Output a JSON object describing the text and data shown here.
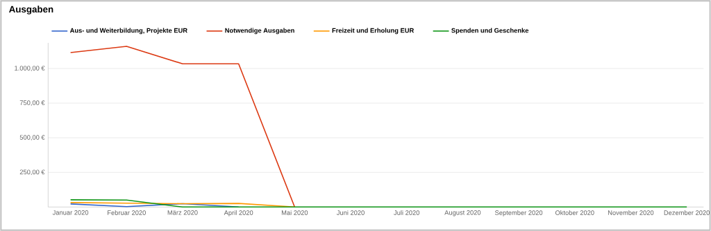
{
  "chart_data": {
    "type": "line",
    "title": "Ausgaben",
    "categories": [
      "Januar 2020",
      "Februar 2020",
      "März 2020",
      "April 2020",
      "Mai 2020",
      "Juni 2020",
      "Juli 2020",
      "August 2020",
      "September 2020",
      "Oktober 2020",
      "November 2020",
      "Dezember 2020"
    ],
    "series": [
      {
        "name": "Aus- und Weiterbildung, Projekte EUR",
        "color": "#3366cc",
        "values": [
          22,
          3,
          24,
          0,
          null,
          null,
          null,
          null,
          null,
          null,
          null,
          null
        ]
      },
      {
        "name": "Notwendige Ausgaben",
        "color": "#dc3912",
        "values": [
          1115,
          1160,
          1034,
          1034,
          0,
          null,
          null,
          null,
          null,
          null,
          null,
          null
        ]
      },
      {
        "name": "Freizeit und Erholung EUR",
        "color": "#ff9900",
        "values": [
          32,
          28,
          24,
          26,
          0,
          null,
          null,
          null,
          null,
          null,
          null,
          null
        ]
      },
      {
        "name": "Spenden und Geschenke",
        "color": "#109618",
        "values": [
          52,
          50,
          0,
          0,
          0,
          0,
          0,
          0,
          0,
          0,
          0,
          0
        ]
      }
    ],
    "ylim": [
      0,
      1185
    ],
    "yticks": [
      {
        "value": 250,
        "label": "250,00 €"
      },
      {
        "value": 500,
        "label": "500,00 €"
      },
      {
        "value": 750,
        "label": "750,00 €"
      },
      {
        "value": 1000,
        "label": "1.000,00 €"
      }
    ],
    "grid": "y",
    "legend": "top",
    "marker": "none",
    "line_style": "solid"
  }
}
